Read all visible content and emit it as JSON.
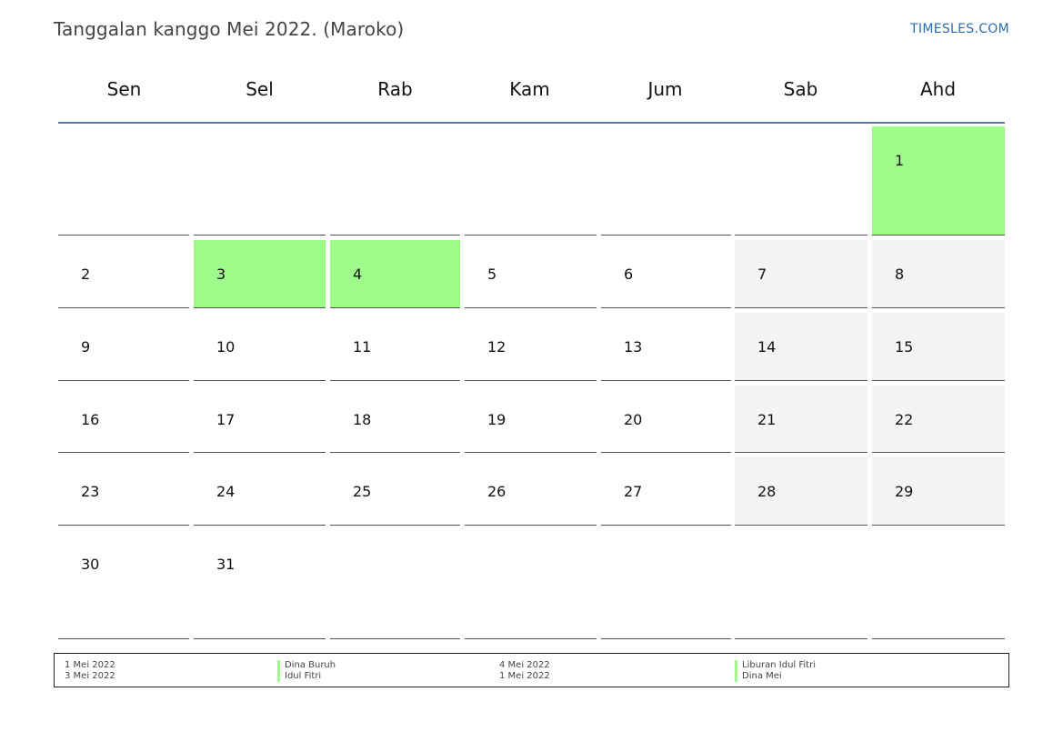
{
  "header": {
    "title": "Tanggalan kanggo Mei 2022. (Maroko)",
    "brand": "TIMESLES.COM"
  },
  "colors": {
    "holiday": "#9efb8a",
    "weekend": "#f4f4f4",
    "header_rule": "#5a7aa8",
    "brand": "#2a6db8"
  },
  "calendar": {
    "weekdays": [
      "Sen",
      "Sel",
      "Rab",
      "Kam",
      "Jum",
      "Sab",
      "Ahd"
    ],
    "weeks": [
      [
        "",
        "",
        "",
        "",
        "",
        "",
        "1"
      ],
      [
        "2",
        "3",
        "4",
        "5",
        "6",
        "7",
        "8"
      ],
      [
        "9",
        "10",
        "11",
        "12",
        "13",
        "14",
        "15"
      ],
      [
        "16",
        "17",
        "18",
        "19",
        "20",
        "21",
        "22"
      ],
      [
        "23",
        "24",
        "25",
        "26",
        "27",
        "28",
        "29"
      ],
      [
        "30",
        "31",
        "",
        "",
        "",
        "",
        ""
      ]
    ],
    "holidays": [
      "1",
      "3",
      "4"
    ]
  },
  "legend": [
    {
      "date": "1 Mei 2022",
      "name": "Dina Buruh"
    },
    {
      "date": "3 Mei 2022",
      "name": "Idul Fitri"
    },
    {
      "date": "4 Mei 2022",
      "name": "Liburan Idul Fitri"
    },
    {
      "date": "1 Mei 2022",
      "name": "Dina Mei"
    }
  ]
}
